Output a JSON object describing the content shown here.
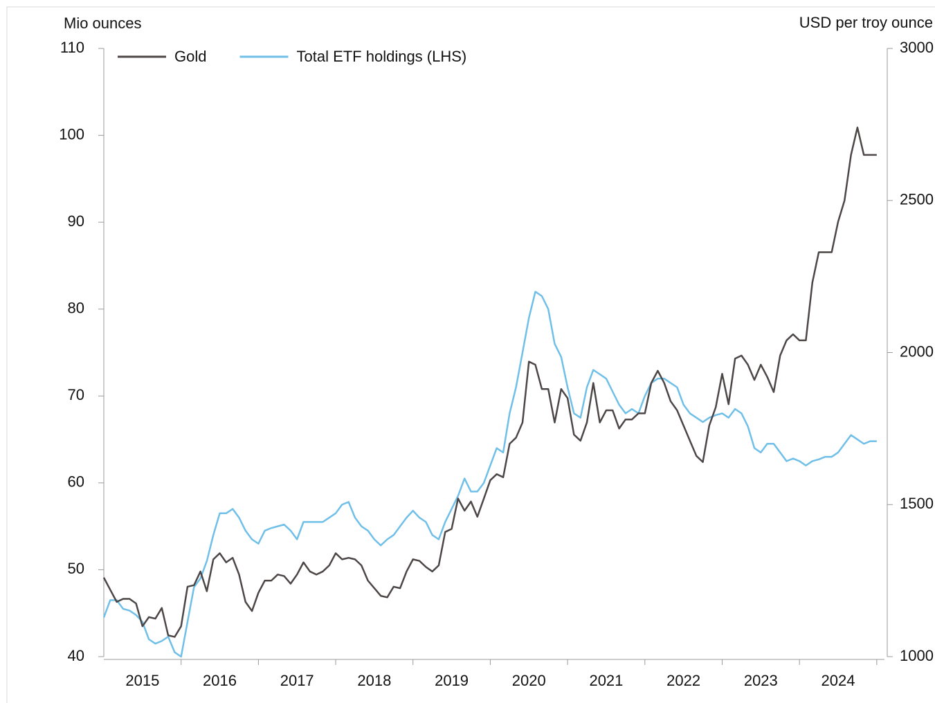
{
  "chart_data": {
    "type": "line",
    "y_label": "Mio ounces",
    "y2_label": "USD per troy ounce",
    "x": [
      2015.0,
      2015.083,
      2015.167,
      2015.25,
      2015.333,
      2015.417,
      2015.5,
      2015.583,
      2015.667,
      2015.75,
      2015.833,
      2015.917,
      2016.0,
      2016.083,
      2016.167,
      2016.25,
      2016.333,
      2016.417,
      2016.5,
      2016.583,
      2016.667,
      2016.75,
      2016.833,
      2016.917,
      2017.0,
      2017.083,
      2017.167,
      2017.25,
      2017.333,
      2017.417,
      2017.5,
      2017.583,
      2017.667,
      2017.75,
      2017.833,
      2017.917,
      2018.0,
      2018.083,
      2018.167,
      2018.25,
      2018.333,
      2018.417,
      2018.5,
      2018.583,
      2018.667,
      2018.75,
      2018.833,
      2018.917,
      2019.0,
      2019.083,
      2019.167,
      2019.25,
      2019.333,
      2019.417,
      2019.5,
      2019.583,
      2019.667,
      2019.75,
      2019.833,
      2019.917,
      2020.0,
      2020.083,
      2020.167,
      2020.25,
      2020.333,
      2020.417,
      2020.5,
      2020.583,
      2020.667,
      2020.75,
      2020.833,
      2020.917,
      2021.0,
      2021.083,
      2021.167,
      2021.25,
      2021.333,
      2021.417,
      2021.5,
      2021.583,
      2021.667,
      2021.75,
      2021.833,
      2021.917,
      2022.0,
      2022.083,
      2022.167,
      2022.25,
      2022.333,
      2022.417,
      2022.5,
      2022.583,
      2022.667,
      2022.75,
      2022.833,
      2022.917,
      2023.0,
      2023.083,
      2023.167,
      2023.25,
      2023.333,
      2023.417,
      2023.5,
      2023.583,
      2023.667,
      2023.75,
      2023.833,
      2023.917,
      2024.0,
      2024.083,
      2024.167,
      2024.25,
      2024.333,
      2024.417,
      2024.5,
      2024.583,
      2024.667,
      2024.75,
      2024.833,
      2024.917,
      2025.0
    ],
    "series": [
      {
        "name": "Gold",
        "color": "#4d4646",
        "axis": "y2",
        "values": [
          1260,
          1220,
          1180,
          1190,
          1190,
          1175,
          1100,
          1130,
          1125,
          1160,
          1070,
          1065,
          1100,
          1230,
          1235,
          1280,
          1215,
          1320,
          1340,
          1310,
          1325,
          1270,
          1180,
          1150,
          1210,
          1250,
          1250,
          1270,
          1265,
          1240,
          1270,
          1310,
          1280,
          1270,
          1280,
          1300,
          1340,
          1320,
          1325,
          1320,
          1300,
          1250,
          1225,
          1200,
          1195,
          1230,
          1225,
          1280,
          1320,
          1315,
          1295,
          1280,
          1300,
          1410,
          1420,
          1520,
          1480,
          1510,
          1460,
          1520,
          1580,
          1600,
          1590,
          1700,
          1720,
          1770,
          1970,
          1960,
          1880,
          1880,
          1770,
          1880,
          1850,
          1730,
          1710,
          1770,
          1900,
          1770,
          1810,
          1810,
          1750,
          1780,
          1780,
          1800,
          1800,
          1900,
          1940,
          1900,
          1840,
          1810,
          1760,
          1710,
          1660,
          1640,
          1760,
          1820,
          1930,
          1830,
          1980,
          1990,
          1960,
          1910,
          1960,
          1920,
          1870,
          1990,
          2040,
          2060,
          2040,
          2040,
          2230,
          2330,
          2330,
          2330,
          2430,
          2500,
          2650,
          2740,
          2650,
          2650,
          2650
        ]
      },
      {
        "name": "Total ETF holdings (LHS)",
        "color": "#6fbfe8",
        "values": [
          44.5,
          46.5,
          46.5,
          45.5,
          45.3,
          44.8,
          44,
          42,
          41.5,
          41.8,
          42.3,
          40.5,
          40,
          44,
          48,
          49,
          51,
          54,
          56.5,
          56.5,
          57,
          56,
          54.5,
          53.5,
          53,
          54.5,
          54.8,
          55,
          55.2,
          54.5,
          53.5,
          55.5,
          55.5,
          55.5,
          55.5,
          56,
          56.5,
          57.5,
          57.8,
          56,
          55,
          54.5,
          53.5,
          52.8,
          53.5,
          54,
          55,
          56,
          56.8,
          56,
          55.5,
          54,
          53.5,
          55.5,
          57,
          58.5,
          60.5,
          59,
          59,
          60,
          62,
          64,
          63.5,
          68,
          71,
          75,
          79,
          82,
          81.5,
          80,
          76,
          74.5,
          71,
          68,
          67.5,
          71,
          73,
          72.5,
          72,
          70.5,
          69,
          68,
          68.5,
          68,
          70,
          71.5,
          72,
          72,
          71.5,
          71,
          69,
          68,
          67.5,
          67,
          67.5,
          67.8,
          68,
          67.5,
          68.5,
          68,
          66.5,
          64,
          63.5,
          64.5,
          64.5,
          63.5,
          62.5,
          62.8,
          62.5,
          62,
          62.5,
          62.7,
          63,
          63,
          63.5,
          64.5,
          65.5,
          65,
          64.5,
          64.8,
          64.8
        ]
      }
    ],
    "xlim": [
      2015.0,
      2025.1
    ],
    "xticks": [
      {
        "value": 2015.5,
        "label": "2015"
      },
      {
        "value": 2016.5,
        "label": "2016"
      },
      {
        "value": 2017.5,
        "label": "2017"
      },
      {
        "value": 2018.5,
        "label": "2018"
      },
      {
        "value": 2019.5,
        "label": "2019"
      },
      {
        "value": 2020.5,
        "label": "2020"
      },
      {
        "value": 2021.5,
        "label": "2021"
      },
      {
        "value": 2022.5,
        "label": "2022"
      },
      {
        "value": 2023.5,
        "label": "2023"
      },
      {
        "value": 2024.5,
        "label": "2024"
      }
    ],
    "ylim": [
      40,
      110
    ],
    "yticks": [
      40,
      50,
      60,
      70,
      80,
      90,
      100,
      110
    ],
    "y2lim": [
      1000,
      3000
    ],
    "y2ticks": [
      1000,
      1500,
      2000,
      2500,
      3000
    ],
    "legend": "top-left"
  }
}
